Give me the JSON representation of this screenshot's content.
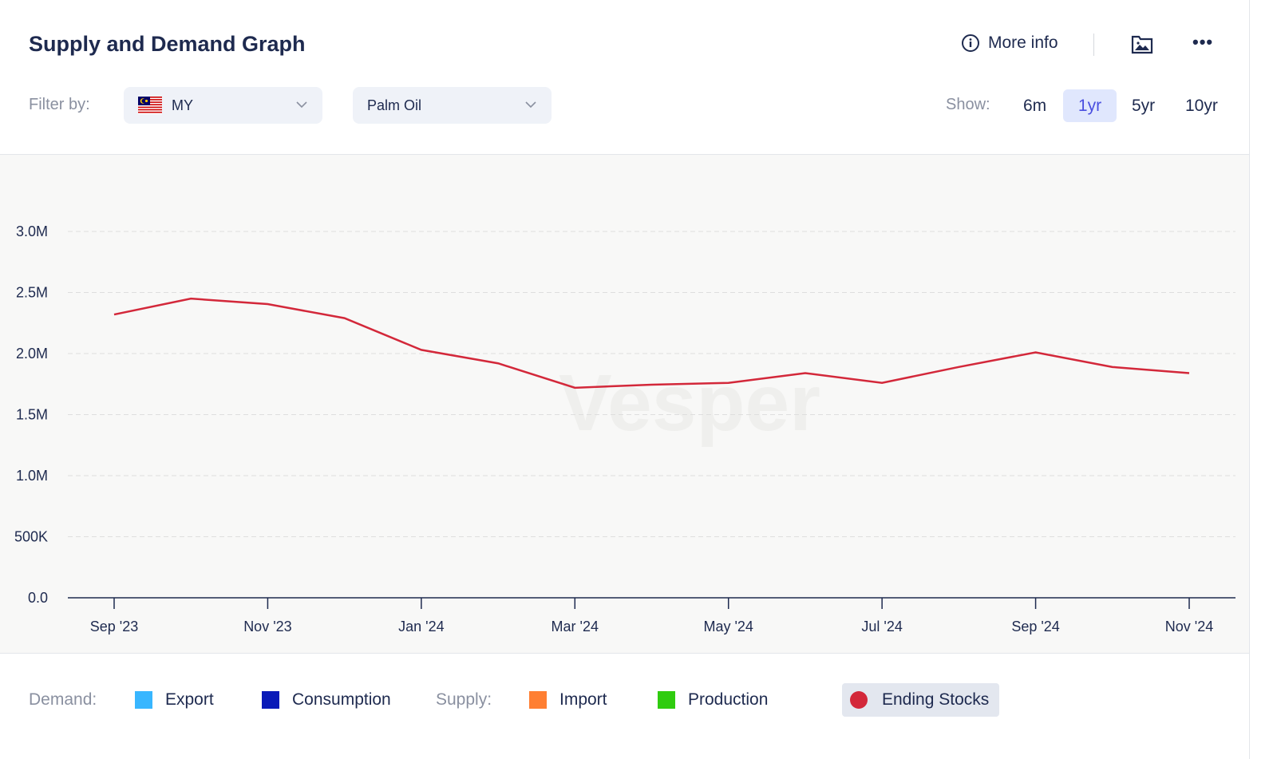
{
  "header": {
    "title": "Supply and Demand Graph",
    "more_info": "More info"
  },
  "filters": {
    "label": "Filter by:",
    "country": "MY",
    "commodity": "Palm Oil"
  },
  "show": {
    "label": "Show:",
    "options": [
      "6m",
      "1yr",
      "5yr",
      "10yr"
    ],
    "active": "1yr"
  },
  "watermark": "Vesper",
  "legend": {
    "demand_label": "Demand:",
    "supply_label": "Supply:",
    "items": [
      {
        "name": "Export",
        "color": "#38b6ff"
      },
      {
        "name": "Consumption",
        "color": "#0a1ab8"
      },
      {
        "name": "Import",
        "color": "#ff7f32"
      },
      {
        "name": "Production",
        "color": "#2fcc0f"
      },
      {
        "name": "Ending Stocks",
        "color": "#d3283a"
      }
    ]
  },
  "chart_data": {
    "type": "line",
    "title": "Supply and Demand Graph",
    "xlabel": "",
    "ylabel": "",
    "ylim": [
      0,
      3000000
    ],
    "y_ticks": [
      {
        "v": 0,
        "label": "0.0"
      },
      {
        "v": 500000,
        "label": "500K"
      },
      {
        "v": 1000000,
        "label": "1.0M"
      },
      {
        "v": 1500000,
        "label": "1.5M"
      },
      {
        "v": 2000000,
        "label": "2.0M"
      },
      {
        "v": 2500000,
        "label": "2.5M"
      },
      {
        "v": 3000000,
        "label": "3.0M"
      }
    ],
    "x": [
      "Sep '23",
      "Oct '23",
      "Nov '23",
      "Dec '23",
      "Jan '24",
      "Feb '24",
      "Mar '24",
      "Apr '24",
      "May '24",
      "Jun '24",
      "Jul '24",
      "Aug '24",
      "Sep '24",
      "Oct '24",
      "Nov '24"
    ],
    "x_tick_labels": [
      "Sep '23",
      "Nov '23",
      "Jan '24",
      "Mar '24",
      "May '24",
      "Jul '24",
      "Sep '24",
      "Nov '24"
    ],
    "grid": true,
    "series": [
      {
        "name": "Ending Stocks",
        "color": "#d3283a",
        "values": [
          2320000,
          2450000,
          2405000,
          2290000,
          2030000,
          1920000,
          1720000,
          1745000,
          1760000,
          1840000,
          1760000,
          1890000,
          2010000,
          1890000,
          1840000
        ]
      }
    ]
  }
}
